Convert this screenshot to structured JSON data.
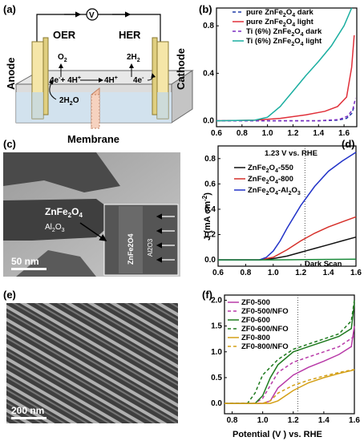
{
  "panels": {
    "a": {
      "letter": "(a)",
      "oer": "OER",
      "her": "HER",
      "anode": "Anode",
      "cathode": "Cathode",
      "o2": "O",
      "o2_sub": "2",
      "h2": "2H",
      "h2_sub": "2",
      "rx_left_a": "4e",
      "rx_left_b": "+ 4H",
      "rx_right_a": "4H",
      "rx_right_b": "4e",
      "water": "2H",
      "water_b": "O",
      "water_sub": "2",
      "membrane": "Membrane",
      "meter": "V"
    },
    "c": {
      "letter": "(c)",
      "material": "ZnFe",
      "material_sub1": "2",
      "material_end": "O",
      "material_sub2": "4",
      "shell": "Al",
      "shell_sub1": "2",
      "shell_mid": "O",
      "shell_sub2": "3",
      "inset_a": "ZnFe2O4",
      "inset_b": "Al2O3",
      "scale": "50 nm"
    },
    "e": {
      "letter": "(e)",
      "scale": "200 nm"
    },
    "b": {
      "letter": "(b)"
    },
    "d": {
      "letter": "(d)",
      "annotation": "1.23 V vs. RHE",
      "dark_scan": "Dark Scan",
      "ylabel": "J (mA cm",
      "ylabel_sup": "-2",
      "ylabel_end": ")"
    },
    "f": {
      "letter": "(f)",
      "xlabel": "Potential (V ) vs. RHE"
    }
  },
  "chart_data": [
    {
      "id": "b",
      "type": "line",
      "xlim": [
        0.6,
        1.7
      ],
      "ylim": [
        -0.05,
        0.95
      ],
      "xticks": [
        "0.6",
        "0.8",
        "1.0",
        "1.2",
        "1.4",
        "1.6"
      ],
      "yticks": [
        "0.0",
        "0.4",
        "0.8"
      ],
      "legend_placement": "top-left",
      "series": [
        {
          "name": "pure ZnFe",
          "name_sub": "2",
          "name_mid": "O",
          "name_sub2": "4",
          "name_end": " dark",
          "color": "#1f3aa8",
          "dash": "4,3",
          "x": [
            0.6,
            1.0,
            1.4,
            1.55,
            1.62,
            1.66,
            1.68
          ],
          "y": [
            0,
            0,
            0,
            0.005,
            0.02,
            0.06,
            0.12
          ]
        },
        {
          "name": "pure ZnFe",
          "name_sub": "2",
          "name_mid": "O",
          "name_sub2": "4",
          "name_end": " light",
          "color": "#e0303a",
          "dash": "",
          "x": [
            0.6,
            0.9,
            1.1,
            1.3,
            1.45,
            1.55,
            1.62,
            1.66,
            1.68
          ],
          "y": [
            0,
            0.005,
            0.02,
            0.05,
            0.08,
            0.12,
            0.2,
            0.45,
            0.72
          ]
        },
        {
          "name": "Ti (6%) ZnFe",
          "name_sub": "2",
          "name_mid": "O",
          "name_sub2": "4",
          "name_end": " dark",
          "color": "#7a2cc0",
          "dash": "4,3",
          "x": [
            0.6,
            1.0,
            1.4,
            1.56,
            1.63,
            1.67,
            1.69
          ],
          "y": [
            0,
            0,
            0,
            0.01,
            0.04,
            0.1,
            0.19
          ]
        },
        {
          "name": "Ti (6%) ZnFe",
          "name_sub": "2",
          "name_mid": "O",
          "name_sub2": "4",
          "name_end": " light",
          "color": "#1aaea0",
          "dash": "",
          "x": [
            0.6,
            0.9,
            1.0,
            1.1,
            1.2,
            1.3,
            1.4,
            1.5,
            1.6,
            1.66
          ],
          "y": [
            0,
            0.005,
            0.03,
            0.12,
            0.25,
            0.38,
            0.5,
            0.63,
            0.8,
            0.95
          ]
        }
      ]
    },
    {
      "id": "d",
      "type": "line",
      "xlim": [
        0.6,
        1.6
      ],
      "ylim": [
        -0.05,
        0.9
      ],
      "xticks": [
        "0.6",
        "0.8",
        "1.0",
        "1.2",
        "1.4",
        "1.6"
      ],
      "yticks": [
        "0.0",
        "0.2",
        "0.4",
        "0.6",
        "0.8"
      ],
      "legend_placement": "top-left",
      "series": [
        {
          "name": "ZnFe",
          "name_sub": "2",
          "name_mid": "O",
          "name_sub2": "4",
          "name_end": "-550",
          "color": "#111111",
          "dash": "",
          "x": [
            0.6,
            0.9,
            1.0,
            1.1,
            1.2,
            1.3,
            1.4,
            1.5,
            1.6
          ],
          "y": [
            0,
            0,
            0.01,
            0.03,
            0.06,
            0.09,
            0.12,
            0.15,
            0.18
          ]
        },
        {
          "name": "ZnFe",
          "name_sub": "2",
          "name_mid": "O",
          "name_sub2": "4",
          "name_end": "-800",
          "color": "#d6302a",
          "dash": "",
          "x": [
            0.6,
            0.9,
            1.0,
            1.1,
            1.2,
            1.3,
            1.4,
            1.5,
            1.6
          ],
          "y": [
            0,
            0,
            0.02,
            0.08,
            0.15,
            0.21,
            0.26,
            0.3,
            0.34
          ]
        },
        {
          "name": "ZnFe",
          "name_sub": "2",
          "name_mid": "O",
          "name_sub2": "4",
          "name_end": "-Al",
          "name_sub3": "2",
          "name_end2": "O",
          "name_sub4": "3",
          "color": "#2233c8",
          "dash": "",
          "x": [
            0.6,
            0.9,
            0.95,
            1.0,
            1.05,
            1.1,
            1.2,
            1.3,
            1.4,
            1.5,
            1.6
          ],
          "y": [
            0,
            0,
            0.02,
            0.07,
            0.15,
            0.25,
            0.43,
            0.58,
            0.7,
            0.78,
            0.85
          ]
        },
        {
          "name": "",
          "color": "#1a8a3a",
          "dash": "",
          "x": [
            0.6,
            1.0,
            1.6
          ],
          "y": [
            0,
            0,
            0.005
          ]
        }
      ]
    },
    {
      "id": "f",
      "type": "line",
      "xlim": [
        0.75,
        1.6
      ],
      "ylim": [
        -0.2,
        2.1
      ],
      "xticks": [
        "0.8",
        "1.0",
        "1.2",
        "1.4",
        "1.6"
      ],
      "yticks": [
        "0.0",
        "0.5",
        "1.0",
        "1.5",
        "2.0"
      ],
      "legend_placement": "top-left",
      "series": [
        {
          "name": "ZF0-500",
          "color": "#b83aa8",
          "dash": "",
          "x": [
            0.75,
            1.0,
            1.05,
            1.1,
            1.2,
            1.3,
            1.4,
            1.5,
            1.58,
            1.6
          ],
          "y": [
            0,
            0,
            0.05,
            0.3,
            0.55,
            0.7,
            0.82,
            0.95,
            1.1,
            1.5
          ]
        },
        {
          "name": "ZF0-500/NFO",
          "color": "#b83aa8",
          "dash": "4,3",
          "x": [
            0.75,
            0.95,
            1.0,
            1.05,
            1.1,
            1.2,
            1.3,
            1.4,
            1.5,
            1.6
          ],
          "y": [
            0,
            0,
            0.1,
            0.35,
            0.6,
            0.8,
            0.9,
            1.0,
            1.1,
            1.3
          ]
        },
        {
          "name": "ZF0-600",
          "color": "#1e7a1e",
          "dash": "",
          "x": [
            0.75,
            0.95,
            1.0,
            1.05,
            1.1,
            1.2,
            1.3,
            1.4,
            1.5,
            1.58,
            1.6
          ],
          "y": [
            0,
            0,
            0.15,
            0.5,
            0.75,
            1.0,
            1.1,
            1.2,
            1.3,
            1.45,
            1.95
          ]
        },
        {
          "name": "ZF0-600/NFO",
          "color": "#1e7a1e",
          "dash": "4,3",
          "x": [
            0.75,
            0.9,
            0.95,
            1.0,
            1.1,
            1.2,
            1.3,
            1.4,
            1.5,
            1.58,
            1.6
          ],
          "y": [
            0,
            0,
            0.2,
            0.55,
            0.85,
            1.05,
            1.15,
            1.25,
            1.35,
            1.6,
            2.0
          ]
        },
        {
          "name": "ZF0-800",
          "color": "#d4a017",
          "dash": "",
          "x": [
            0.75,
            1.05,
            1.1,
            1.2,
            1.3,
            1.4,
            1.5,
            1.6
          ],
          "y": [
            0,
            0,
            0.05,
            0.25,
            0.4,
            0.5,
            0.58,
            0.65
          ]
        },
        {
          "name": "ZF0-800/NFO",
          "color": "#d4a017",
          "dash": "4,3",
          "x": [
            0.75,
            1.0,
            1.05,
            1.1,
            1.2,
            1.3,
            1.4,
            1.5,
            1.6
          ],
          "y": [
            0,
            0,
            0.05,
            0.2,
            0.35,
            0.45,
            0.53,
            0.6,
            0.66
          ]
        }
      ]
    }
  ]
}
